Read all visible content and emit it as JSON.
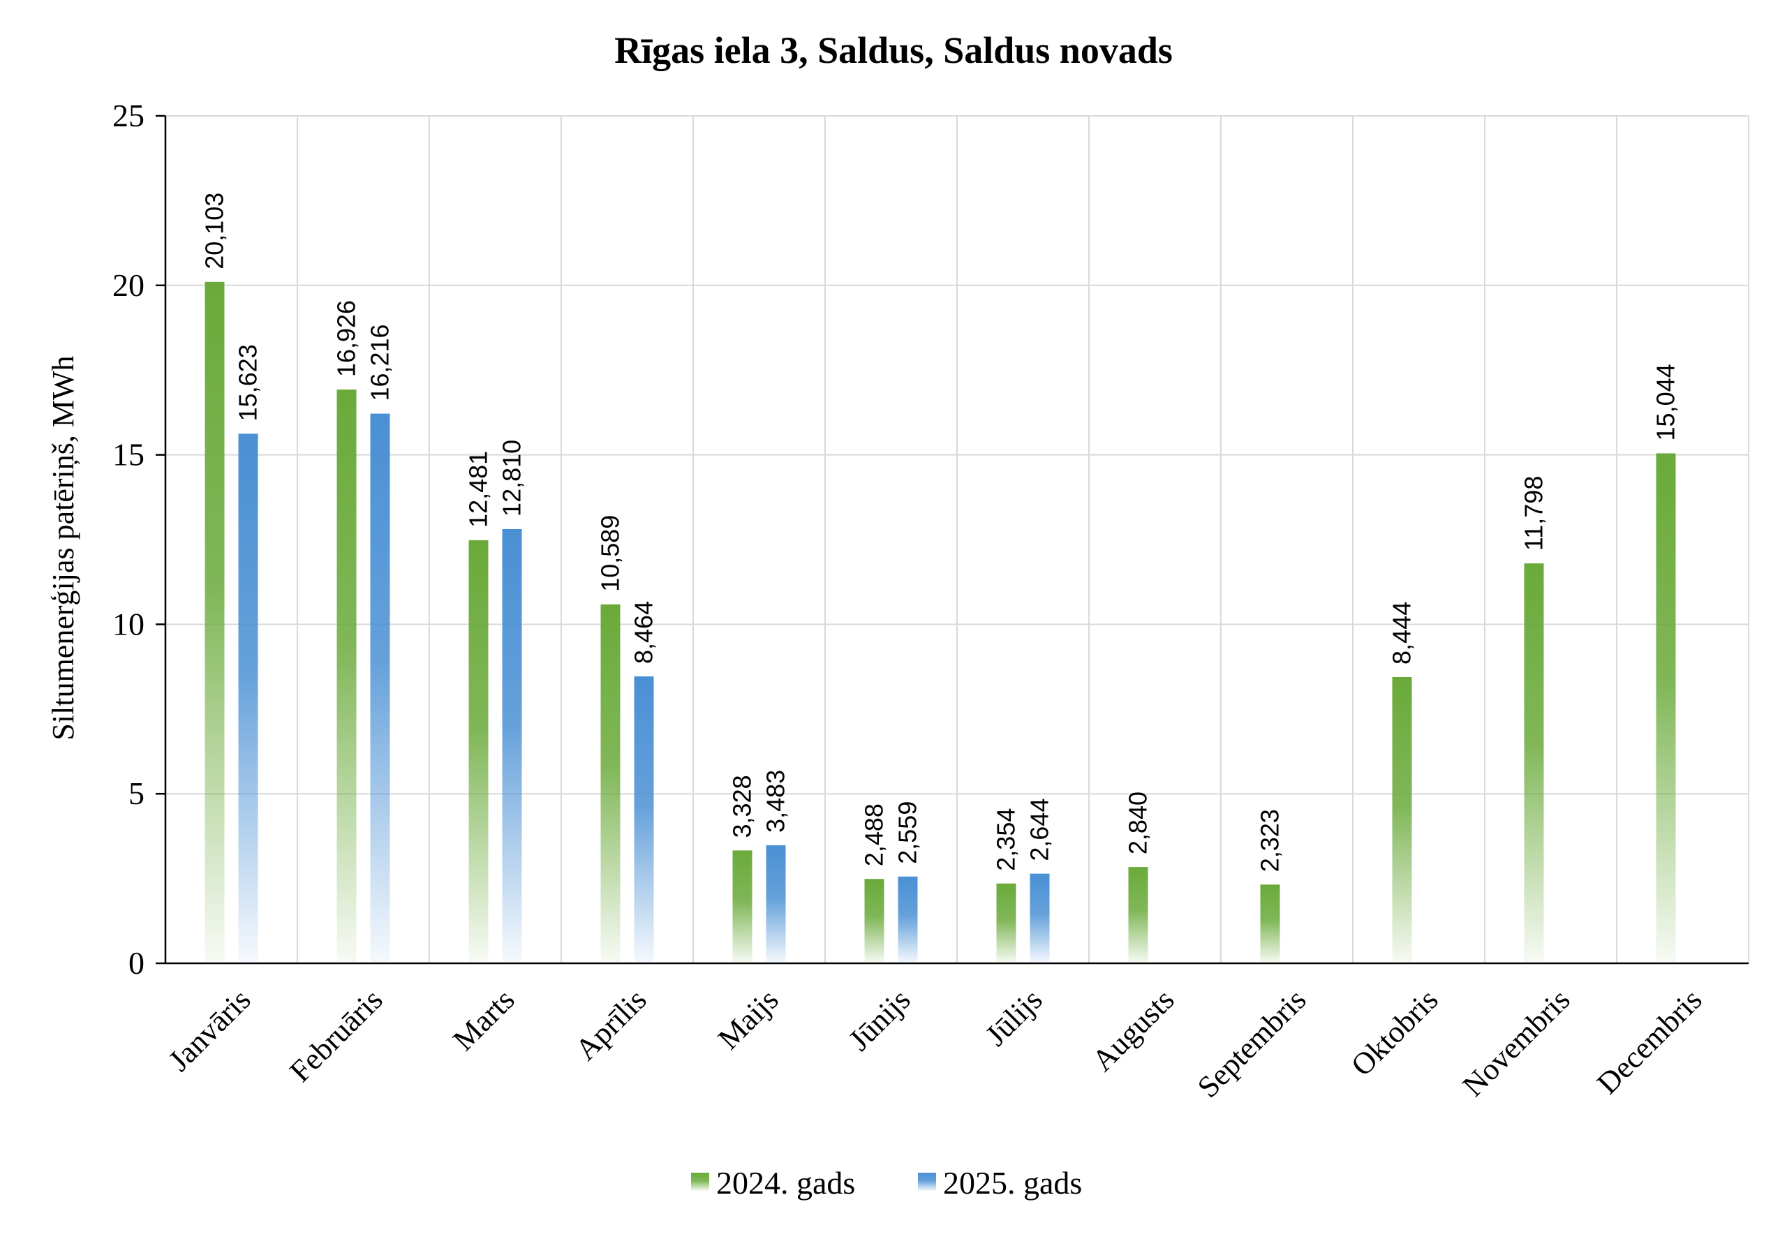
{
  "chart_data": {
    "type": "bar",
    "title": "Rīgas iela 3, Saldus, Saldus novads",
    "xlabel": "",
    "ylabel": "Siltumenerģijas patēriņš, MWh",
    "ylim": [
      0,
      25
    ],
    "yticks": [
      "0",
      "5",
      "10",
      "15",
      "20",
      "25"
    ],
    "grid": true,
    "legend_position": "bottom",
    "categories": [
      "Janvāris",
      "Februāris",
      "Marts",
      "Aprīlis",
      "Maijs",
      "Jūnijs",
      "Jūlijs",
      "Augusts",
      "Septembris",
      "Oktobris",
      "Novembris",
      "Decembris"
    ],
    "series": [
      {
        "name": "2024. gads",
        "color": "#6aaa3a",
        "values": [
          20.103,
          16.926,
          12.481,
          10.589,
          3.328,
          2.488,
          2.354,
          2.84,
          2.323,
          8.444,
          11.798,
          15.044
        ],
        "labels": [
          "20,103",
          "16,926",
          "12,481",
          "10,589",
          "3,328",
          "2,488",
          "2,354",
          "2,840",
          "2,323",
          "8,444",
          "11,798",
          "15,044"
        ]
      },
      {
        "name": "2025. gads",
        "color": "#4a90d4",
        "values": [
          15.623,
          16.216,
          12.81,
          8.464,
          3.483,
          2.559,
          2.644,
          null,
          null,
          null,
          null,
          null
        ],
        "labels": [
          "15,623",
          "16,216",
          "12,810",
          "8,464",
          "3,483",
          "2,559",
          "2,644",
          null,
          null,
          null,
          null,
          null
        ]
      }
    ]
  }
}
